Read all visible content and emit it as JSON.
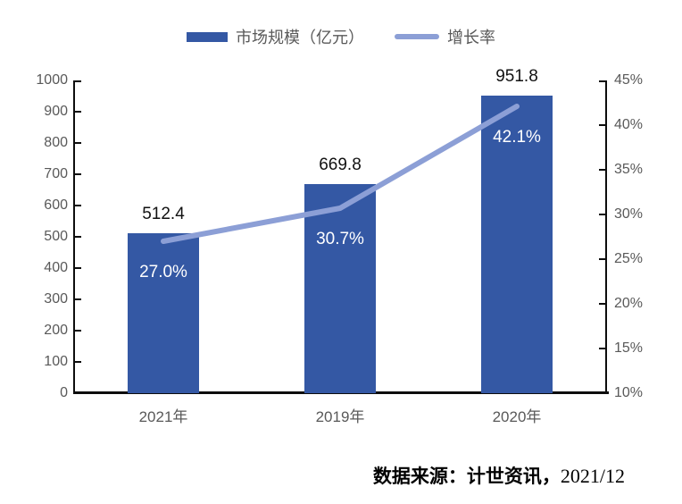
{
  "chart_data": {
    "type": "bar+line",
    "categories": [
      "2021年",
      "2019年",
      "2020年"
    ],
    "series": [
      {
        "name": "市场规模（亿元）",
        "type": "bar",
        "axis": "left",
        "color": "#3458A4",
        "values": [
          512.4,
          669.8,
          951.8
        ],
        "data_labels": [
          "512.4",
          "669.8",
          "951.8"
        ]
      },
      {
        "name": "增长率",
        "type": "line",
        "axis": "right",
        "color": "#8C9FD6",
        "values": [
          27.0,
          30.7,
          42.1
        ],
        "data_labels": [
          "27.0%",
          "30.7%",
          "42.1%"
        ]
      }
    ],
    "left_axis": {
      "min": 0,
      "max": 1000,
      "step": 100,
      "ticks": [
        "0",
        "100",
        "200",
        "300",
        "400",
        "500",
        "600",
        "700",
        "800",
        "900",
        "1000"
      ]
    },
    "right_axis": {
      "min": 10,
      "max": 45,
      "step": 5,
      "ticks": [
        "10%",
        "15%",
        "20%",
        "25%",
        "30%",
        "35%",
        "40%",
        "45%"
      ]
    },
    "legend_position": "top",
    "grid": false,
    "title": ""
  },
  "source": {
    "prefix": "数据来源：计世资讯，",
    "date": "2021/12"
  }
}
